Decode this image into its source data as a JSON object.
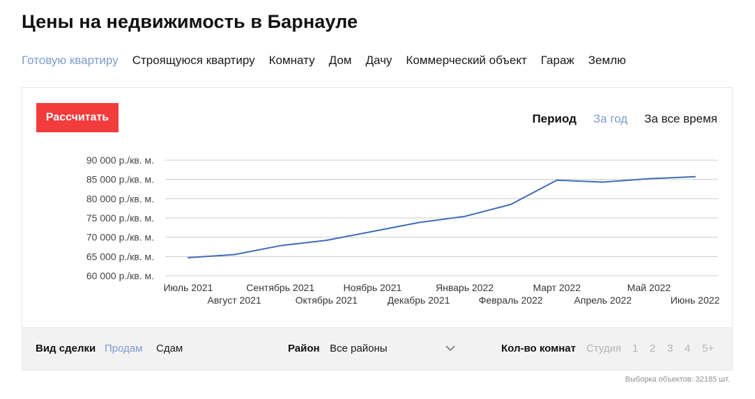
{
  "page": {
    "title": "Цены на недвижимость в Барнауле"
  },
  "property_tabs": [
    {
      "label": "Готовую квартиру",
      "active": true
    },
    {
      "label": "Строящуюся квартиру",
      "active": false
    },
    {
      "label": "Комнату",
      "active": false
    },
    {
      "label": "Дом",
      "active": false
    },
    {
      "label": "Дачу",
      "active": false
    },
    {
      "label": "Коммерческий объект",
      "active": false
    },
    {
      "label": "Гараж",
      "active": false
    },
    {
      "label": "Землю",
      "active": false
    }
  ],
  "calc_button": {
    "label": "Рассчитать",
    "color": "#f23c3c"
  },
  "period": {
    "label": "Период",
    "options": [
      {
        "label": "За год",
        "active": true
      },
      {
        "label": "За все время",
        "active": false
      }
    ]
  },
  "chart_data": {
    "type": "line",
    "x": [
      "Июль 2021",
      "Август 2021",
      "Сентябрь 2021",
      "Октябрь 2021",
      "Ноябрь 2021",
      "Декабрь 2021",
      "Январь 2022",
      "Февраль 2022",
      "Март 2022",
      "Апрель 2022",
      "Май 2022",
      "Июнь 2022"
    ],
    "series": [
      {
        "values": [
          64700,
          65500,
          67800,
          69200,
          71500,
          73800,
          75400,
          78500,
          84800,
          84300,
          85200,
          85700
        ],
        "color": "#3f6bb8"
      }
    ],
    "ylim": [
      60000,
      90000
    ],
    "yticks": [
      60000,
      65000,
      70000,
      75000,
      80000,
      85000,
      90000
    ],
    "ytick_labels": [
      "60 000 р./кв. м.",
      "65 000 р./кв. м.",
      "70 000 р./кв. м.",
      "75 000 р./кв. м.",
      "80 000 р./кв. м.",
      "85 000 р./кв. м.",
      "90 000 р./кв. м."
    ],
    "grid": true,
    "title": "",
    "xlabel": "",
    "ylabel": ""
  },
  "filters": {
    "deal": {
      "label": "Вид сделки",
      "options": [
        {
          "label": "Продам",
          "active": true
        },
        {
          "label": "Сдам",
          "active": false
        }
      ]
    },
    "district": {
      "label": "Район",
      "value": "Все районы"
    },
    "rooms": {
      "label": "Кол-во комнат",
      "options": [
        "Студия",
        "1",
        "2",
        "3",
        "4",
        "5+"
      ]
    }
  },
  "footnote": "Выборка объектов: 32185 шт.",
  "colors": {
    "accent": "#7c9bd0",
    "line": "#3f6bb8",
    "grid": "#cccccc",
    "button": "#f23c3c"
  }
}
